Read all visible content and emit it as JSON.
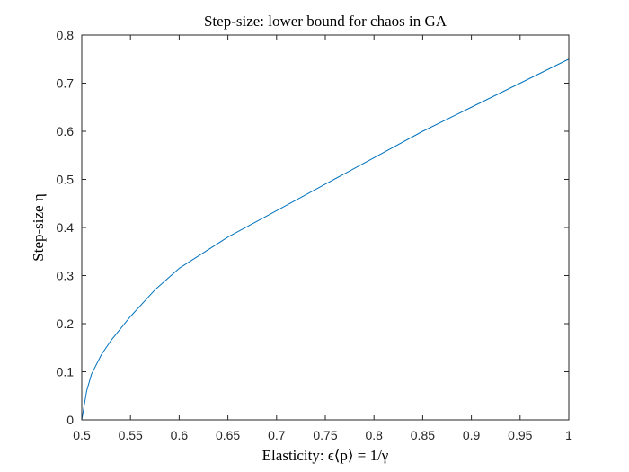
{
  "chart_data": {
    "type": "line",
    "title": "Step-size: lower bound for chaos in GA",
    "xlabel": "Elasticity: ϵ⟨p⟩ = 1/γ",
    "ylabel": "Step-size η",
    "xlim": [
      0.5,
      1
    ],
    "ylim": [
      0,
      0.8
    ],
    "x_ticks": [
      0.5,
      0.55,
      0.6,
      0.65,
      0.7,
      0.75,
      0.8,
      0.85,
      0.9,
      0.95,
      1
    ],
    "y_ticks": [
      0,
      0.1,
      0.2,
      0.3,
      0.4,
      0.5,
      0.6,
      0.7,
      0.8
    ],
    "x_tick_labels": [
      "0.5",
      "0.55",
      "0.6",
      "0.65",
      "0.7",
      "0.75",
      "0.8",
      "0.85",
      "0.9",
      "0.95",
      "1"
    ],
    "y_tick_labels": [
      "0",
      "0.1",
      "0.2",
      "0.3",
      "0.4",
      "0.5",
      "0.6",
      "0.7",
      "0.8"
    ],
    "grid": false,
    "series": [
      {
        "color": "#0072BD",
        "x": [
          0.5,
          0.505,
          0.51,
          0.52,
          0.53,
          0.55,
          0.575,
          0.6,
          0.65,
          0.7,
          0.75,
          0.8,
          0.85,
          0.9,
          0.95,
          1.0
        ],
        "y": [
          0.0,
          0.06,
          0.095,
          0.135,
          0.165,
          0.215,
          0.27,
          0.315,
          0.38,
          0.435,
          0.49,
          0.545,
          0.6,
          0.65,
          0.7,
          0.75
        ]
      }
    ]
  }
}
